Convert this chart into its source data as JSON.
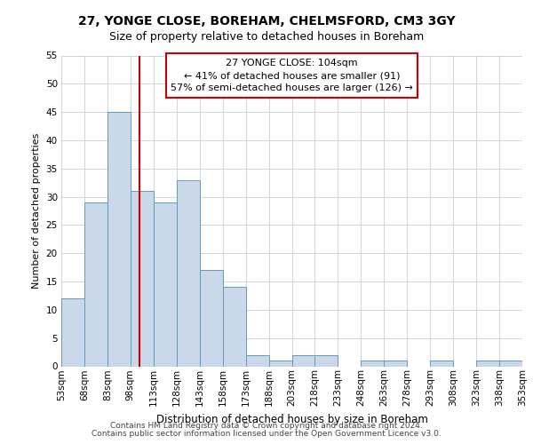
{
  "title1": "27, YONGE CLOSE, BOREHAM, CHELMSFORD, CM3 3GY",
  "title2": "Size of property relative to detached houses in Boreham",
  "xlabel": "Distribution of detached houses by size in Boreham",
  "ylabel": "Number of detached properties",
  "footer1": "Contains HM Land Registry data © Crown copyright and database right 2024.",
  "footer2": "Contains public sector information licensed under the Open Government Licence v3.0.",
  "bin_labels": [
    "53sqm",
    "68sqm",
    "83sqm",
    "98sqm",
    "113sqm",
    "128sqm",
    "143sqm",
    "158sqm",
    "173sqm",
    "188sqm",
    "203sqm",
    "218sqm",
    "233sqm",
    "248sqm",
    "263sqm",
    "278sqm",
    "293sqm",
    "308sqm",
    "323sqm",
    "338sqm",
    "353sqm"
  ],
  "bar_values": [
    12,
    29,
    45,
    31,
    29,
    33,
    17,
    14,
    2,
    1,
    2,
    2,
    0,
    1,
    1,
    0,
    1,
    0,
    1,
    1
  ],
  "bar_color": "#c9d9ea",
  "bar_edge_color": "#6699bb",
  "grid_color": "#c8d0dc",
  "annotation_box_color": "#cc0000",
  "vline_color": "#cc0000",
  "annotation_text": "27 YONGE CLOSE: 104sqm\n← 41% of detached houses are smaller (91)\n57% of semi-detached houses are larger (126) →",
  "ylim": [
    0,
    55
  ],
  "yticks": [
    0,
    5,
    10,
    15,
    20,
    25,
    30,
    35,
    40,
    45,
    50,
    55
  ],
  "background_color": "#ffffff",
  "title1_fontsize": 10,
  "title2_fontsize": 9,
  "xlabel_fontsize": 8.5,
  "ylabel_fontsize": 8,
  "tick_fontsize": 7.5,
  "annotation_fontsize": 8,
  "footer_fontsize": 6.5
}
